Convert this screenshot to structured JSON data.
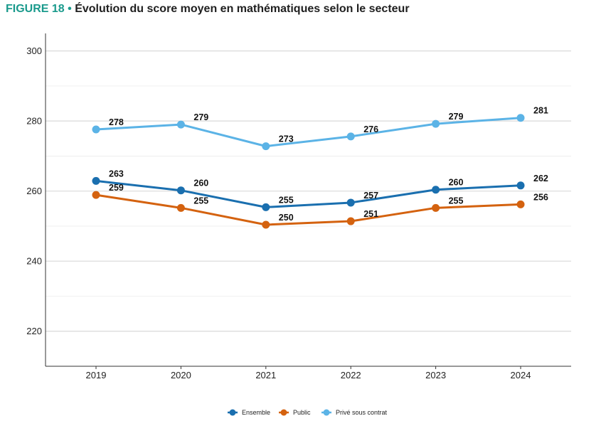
{
  "figure": {
    "label": "FIGURE 18 •",
    "title": "Évolution du score moyen en mathématiques selon le secteur"
  },
  "chart_data": {
    "type": "line",
    "x": [
      "2019",
      "2020",
      "2021",
      "2022",
      "2023",
      "2024"
    ],
    "ylim": [
      210,
      305
    ],
    "yticks": [
      220,
      240,
      260,
      280,
      300
    ],
    "grid": true,
    "legend_position": "bottom-center",
    "series": [
      {
        "name": "Ensemble",
        "color": "#1a6faf",
        "values": [
          262.9,
          260.2,
          255.4,
          256.7,
          260.4,
          261.6
        ],
        "labels": [
          "263",
          "260",
          "255",
          "257",
          "260",
          "262"
        ]
      },
      {
        "name": "Public",
        "color": "#d4620f",
        "values": [
          258.9,
          255.2,
          250.4,
          251.4,
          255.2,
          256.2
        ],
        "labels": [
          "259",
          "255",
          "250",
          "251",
          "255",
          "256"
        ]
      },
      {
        "name": "Privé sous contrat",
        "color": "#5bb3e6",
        "values": [
          277.6,
          279.0,
          272.8,
          275.6,
          279.2,
          280.9
        ],
        "labels": [
          "278",
          "279",
          "273",
          "276",
          "279",
          "281"
        ]
      }
    ]
  }
}
